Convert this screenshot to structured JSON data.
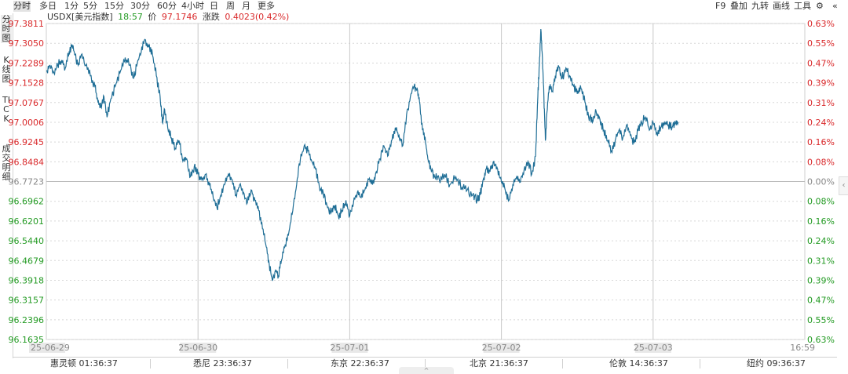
{
  "toolbar": {
    "timeframes": [
      "分时",
      "多日",
      "1分",
      "5分",
      "15分",
      "30分",
      "60分",
      "4小时",
      "日",
      "周",
      "月",
      "更多"
    ],
    "active_timeframe": 0,
    "tools": [
      "F9",
      "叠加",
      "九转",
      "画线",
      "工具"
    ]
  },
  "side_tabs": [
    "分时图",
    "K线图",
    "TICK",
    "成交明细"
  ],
  "info": {
    "symbol": "USDX[美元指数]",
    "time": "18:57",
    "price_label": "价",
    "price": "97.1746",
    "change_label": "涨跌",
    "change": "0.4023(0.42%)"
  },
  "colors": {
    "line": "#1f6e96",
    "up": "#d9282a",
    "down": "#229a22",
    "flat": "#888888",
    "grid": "#d8d8d8"
  },
  "chart_data": {
    "type": "line",
    "prev_close": 96.7723,
    "ylim": [
      96.1635,
      97.3811
    ],
    "y_ticks": [
      "97.3811",
      "97.3050",
      "97.2289",
      "97.1528",
      "97.0767",
      "97.0006",
      "96.9245",
      "96.8484",
      "96.7723",
      "96.6962",
      "96.6201",
      "96.5440",
      "96.4679",
      "96.3918",
      "96.3157",
      "96.2396",
      "96.1635"
    ],
    "pct_ticks": [
      "0.63%",
      "0.55%",
      "0.47%",
      "0.39%",
      "0.31%",
      "0.24%",
      "0.16%",
      "0.08%",
      "0.00%",
      "0.08%",
      "0.16%",
      "0.24%",
      "0.31%",
      "0.39%",
      "0.47%",
      "0.55%",
      "0.63%"
    ],
    "x_labels": [
      "25-06-29",
      "25-06-30",
      "25-07-01",
      "25-07-02",
      "25-07-03",
      "16:59"
    ],
    "x_day_positions": [
      0,
      0.2,
      0.4,
      0.6,
      0.8,
      1.0
    ],
    "series": [
      {
        "values": [
          [
            0.0,
            97.2
          ],
          [
            0.005,
            97.22
          ],
          [
            0.01,
            97.19
          ],
          [
            0.015,
            97.22
          ],
          [
            0.02,
            97.24
          ],
          [
            0.025,
            97.21
          ],
          [
            0.03,
            97.27
          ],
          [
            0.034,
            97.3
          ],
          [
            0.038,
            97.26
          ],
          [
            0.042,
            97.22
          ],
          [
            0.046,
            97.26
          ],
          [
            0.052,
            97.22
          ],
          [
            0.058,
            97.18
          ],
          [
            0.064,
            97.14
          ],
          [
            0.068,
            97.08
          ],
          [
            0.072,
            97.06
          ],
          [
            0.076,
            97.1
          ],
          [
            0.08,
            97.02
          ],
          [
            0.085,
            97.09
          ],
          [
            0.092,
            97.15
          ],
          [
            0.098,
            97.2
          ],
          [
            0.104,
            97.25
          ],
          [
            0.11,
            97.22
          ],
          [
            0.115,
            97.17
          ],
          [
            0.12,
            97.23
          ],
          [
            0.125,
            97.27
          ],
          [
            0.13,
            97.32
          ],
          [
            0.135,
            97.29
          ],
          [
            0.14,
            97.26
          ],
          [
            0.145,
            97.18
          ],
          [
            0.15,
            97.1
          ],
          [
            0.153,
            97.0
          ],
          [
            0.156,
            97.05
          ],
          [
            0.16,
            96.98
          ],
          [
            0.165,
            96.94
          ],
          [
            0.17,
            96.9
          ],
          [
            0.175,
            96.93
          ],
          [
            0.18,
            96.85
          ],
          [
            0.185,
            96.86
          ],
          [
            0.19,
            96.79
          ],
          [
            0.195,
            96.83
          ],
          [
            0.2,
            96.8
          ],
          [
            0.205,
            96.78
          ],
          [
            0.21,
            96.8
          ],
          [
            0.215,
            96.76
          ],
          [
            0.22,
            96.71
          ],
          [
            0.225,
            96.67
          ],
          [
            0.23,
            96.72
          ],
          [
            0.235,
            96.76
          ],
          [
            0.24,
            96.8
          ],
          [
            0.245,
            96.78
          ],
          [
            0.25,
            96.72
          ],
          [
            0.255,
            96.76
          ],
          [
            0.26,
            96.73
          ],
          [
            0.265,
            96.69
          ],
          [
            0.27,
            96.74
          ],
          [
            0.275,
            96.7
          ],
          [
            0.28,
            96.66
          ],
          [
            0.285,
            96.59
          ],
          [
            0.29,
            96.52
          ],
          [
            0.294,
            96.45
          ],
          [
            0.298,
            96.39
          ],
          [
            0.302,
            96.43
          ],
          [
            0.306,
            96.41
          ],
          [
            0.31,
            96.47
          ],
          [
            0.315,
            96.53
          ],
          [
            0.32,
            96.58
          ],
          [
            0.325,
            96.66
          ],
          [
            0.33,
            96.76
          ],
          [
            0.335,
            96.86
          ],
          [
            0.34,
            96.91
          ],
          [
            0.345,
            96.89
          ],
          [
            0.35,
            96.85
          ],
          [
            0.355,
            96.82
          ],
          [
            0.36,
            96.75
          ],
          [
            0.365,
            96.73
          ],
          [
            0.37,
            96.68
          ],
          [
            0.375,
            96.65
          ],
          [
            0.38,
            96.68
          ],
          [
            0.385,
            96.64
          ],
          [
            0.39,
            96.66
          ],
          [
            0.395,
            96.7
          ],
          [
            0.4,
            96.64
          ],
          [
            0.405,
            96.69
          ],
          [
            0.41,
            96.73
          ],
          [
            0.415,
            96.71
          ],
          [
            0.42,
            96.74
          ],
          [
            0.425,
            96.78
          ],
          [
            0.43,
            96.76
          ],
          [
            0.435,
            96.81
          ],
          [
            0.44,
            96.86
          ],
          [
            0.445,
            96.91
          ],
          [
            0.45,
            96.87
          ],
          [
            0.455,
            96.93
          ],
          [
            0.46,
            96.98
          ],
          [
            0.465,
            96.95
          ],
          [
            0.47,
            96.91
          ],
          [
            0.475,
            97.03
          ],
          [
            0.48,
            97.1
          ],
          [
            0.485,
            97.14
          ],
          [
            0.489,
            97.13
          ],
          [
            0.492,
            97.08
          ],
          [
            0.496,
            96.97
          ],
          [
            0.5,
            96.92
          ],
          [
            0.503,
            96.86
          ],
          [
            0.507,
            96.82
          ],
          [
            0.512,
            96.79
          ],
          [
            0.518,
            96.78
          ],
          [
            0.525,
            96.8
          ],
          [
            0.532,
            96.76
          ],
          [
            0.54,
            96.79
          ],
          [
            0.548,
            96.75
          ],
          [
            0.555,
            96.74
          ],
          [
            0.562,
            96.72
          ],
          [
            0.568,
            96.7
          ],
          [
            0.572,
            96.72
          ],
          [
            0.576,
            96.78
          ],
          [
            0.58,
            96.82
          ],
          [
            0.585,
            96.81
          ],
          [
            0.59,
            96.85
          ],
          [
            0.595,
            96.82
          ],
          [
            0.6,
            96.77
          ],
          [
            0.605,
            96.74
          ],
          [
            0.61,
            96.7
          ],
          [
            0.615,
            96.76
          ],
          [
            0.62,
            96.79
          ],
          [
            0.625,
            96.77
          ],
          [
            0.63,
            96.82
          ],
          [
            0.635,
            96.85
          ],
          [
            0.64,
            96.8
          ],
          [
            0.645,
            96.87
          ],
          [
            0.648,
            97.1
          ],
          [
            0.65,
            97.22
          ],
          [
            0.652,
            97.36
          ],
          [
            0.654,
            97.25
          ],
          [
            0.656,
            97.1
          ],
          [
            0.658,
            96.93
          ],
          [
            0.66,
            97.04
          ],
          [
            0.663,
            97.14
          ],
          [
            0.667,
            97.12
          ],
          [
            0.671,
            97.18
          ],
          [
            0.675,
            97.22
          ],
          [
            0.68,
            97.17
          ],
          [
            0.685,
            97.21
          ],
          [
            0.69,
            97.18
          ],
          [
            0.695,
            97.14
          ],
          [
            0.7,
            97.11
          ],
          [
            0.705,
            97.13
          ],
          [
            0.71,
            97.08
          ],
          [
            0.715,
            97.02
          ],
          [
            0.72,
            97.0
          ],
          [
            0.725,
            97.04
          ],
          [
            0.73,
            97.01
          ],
          [
            0.735,
            96.97
          ],
          [
            0.74,
            96.93
          ],
          [
            0.745,
            96.89
          ],
          [
            0.75,
            96.93
          ],
          [
            0.755,
            96.97
          ],
          [
            0.76,
            96.94
          ],
          [
            0.765,
            96.99
          ],
          [
            0.77,
            96.95
          ],
          [
            0.775,
            96.92
          ],
          [
            0.78,
            96.97
          ],
          [
            0.785,
            97.0
          ],
          [
            0.79,
            97.02
          ],
          [
            0.795,
            96.97
          ],
          [
            0.8,
            97.0
          ],
          [
            0.805,
            96.96
          ],
          [
            0.81,
            96.98
          ],
          [
            0.815,
            97.0
          ],
          [
            0.82,
            96.99
          ],
          [
            0.825,
            96.98
          ],
          [
            0.83,
            97.0
          ],
          [
            0.833,
            97.0
          ]
        ]
      }
    ]
  },
  "timezones": [
    "惠灵顿 01:36:37",
    "悉尼 23:36:37",
    "东京 22:36:37",
    "北京 21:36:37",
    "伦敦 14:36:37",
    "纽约 09:36:37"
  ]
}
